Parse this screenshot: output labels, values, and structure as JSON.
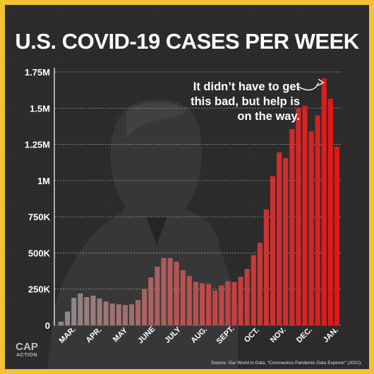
{
  "header": {
    "title": "U.S. COVID-19 CASES PER WEEK"
  },
  "annotation": {
    "lines": [
      "It didn’t have to get",
      "this bad, but help is",
      "on the way."
    ]
  },
  "source": "Source: Our World in Data, “Coronavirus Pandemic Data Explorer” (2021).",
  "logo": {
    "line1": "CAP",
    "line2": "ACTION"
  },
  "colors": {
    "background": "#2b2a2a",
    "border": "#f2c230",
    "bar_early": "#8c8c8c",
    "bar_late": "#e01818",
    "grid": "#ffffff"
  },
  "chart_data": {
    "type": "bar",
    "title": "U.S. COVID-19 CASES PER WEEK",
    "xlabel": "",
    "ylabel": "",
    "ylim": [
      0,
      1750000
    ],
    "yticks": [
      0,
      250000,
      500000,
      750000,
      1000000,
      1250000,
      1500000,
      1750000
    ],
    "ytick_labels": [
      "0",
      "250K",
      "500K",
      "750K",
      "1M",
      "1.25M",
      "1.5M",
      "1.75M"
    ],
    "month_labels": [
      "MAR.",
      "APR.",
      "MAY",
      "JUNE",
      "JULY",
      "AUG.",
      "SEPT.",
      "OCT.",
      "NOV.",
      "DEC.",
      "JAN."
    ],
    "grid": true,
    "values": [
      25000,
      95000,
      190000,
      220000,
      195000,
      205000,
      185000,
      165000,
      150000,
      145000,
      140000,
      145000,
      175000,
      250000,
      330000,
      405000,
      465000,
      465000,
      440000,
      380000,
      340000,
      300000,
      290000,
      285000,
      240000,
      275000,
      305000,
      300000,
      335000,
      390000,
      485000,
      570000,
      800000,
      1030000,
      1195000,
      1155000,
      1355000,
      1500000,
      1515000,
      1340000,
      1450000,
      1705000,
      1565000,
      1235000
    ]
  }
}
